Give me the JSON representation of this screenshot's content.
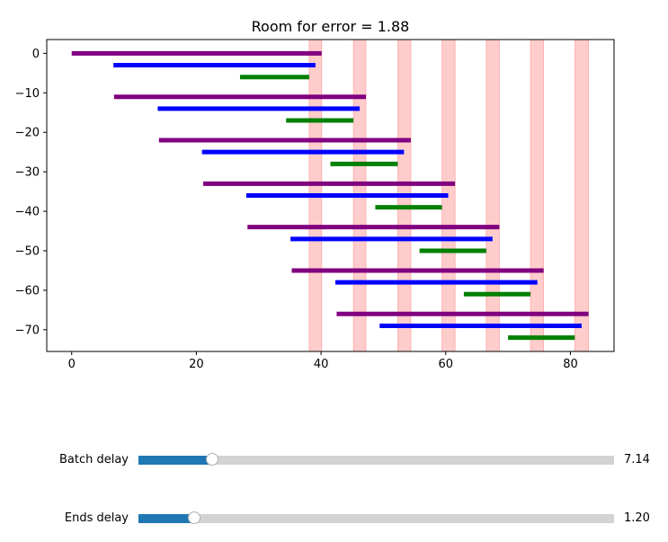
{
  "chart_data": {
    "type": "gantt",
    "title": "Room for error = 1.88",
    "xlabel": "",
    "ylabel": "",
    "xlim": [
      -4,
      87
    ],
    "ylim": [
      -75.5,
      3.5
    ],
    "xticks": [
      0,
      20,
      40,
      60,
      80
    ],
    "yticks": [
      0,
      -10,
      -20,
      -30,
      -40,
      -50,
      -60,
      -70
    ],
    "grid": false,
    "colors": {
      "purple": "#800080",
      "blue": "#0000ff",
      "green": "#008000",
      "band": "#ffcccc"
    },
    "bars": [
      {
        "y": 0,
        "start": 0.0,
        "end": 40.1,
        "color": "purple"
      },
      {
        "y": -3,
        "start": 6.7,
        "end": 39.1,
        "color": "blue"
      },
      {
        "y": -6,
        "start": 27.0,
        "end": 38.1,
        "color": "green"
      },
      {
        "y": -11,
        "start": 6.8,
        "end": 47.2,
        "color": "purple"
      },
      {
        "y": -14,
        "start": 13.8,
        "end": 46.2,
        "color": "blue"
      },
      {
        "y": -17,
        "start": 34.4,
        "end": 45.2,
        "color": "green"
      },
      {
        "y": -22,
        "start": 14.0,
        "end": 54.4,
        "color": "purple"
      },
      {
        "y": -25,
        "start": 20.9,
        "end": 53.3,
        "color": "blue"
      },
      {
        "y": -28,
        "start": 41.5,
        "end": 52.3,
        "color": "green"
      },
      {
        "y": -33,
        "start": 21.1,
        "end": 61.5,
        "color": "purple"
      },
      {
        "y": -36,
        "start": 28.0,
        "end": 60.4,
        "color": "blue"
      },
      {
        "y": -39,
        "start": 48.7,
        "end": 59.4,
        "color": "green"
      },
      {
        "y": -44,
        "start": 28.2,
        "end": 68.6,
        "color": "purple"
      },
      {
        "y": -47,
        "start": 35.1,
        "end": 67.5,
        "color": "blue"
      },
      {
        "y": -50,
        "start": 55.8,
        "end": 66.5,
        "color": "green"
      },
      {
        "y": -55,
        "start": 35.3,
        "end": 75.7,
        "color": "purple"
      },
      {
        "y": -58,
        "start": 42.3,
        "end": 74.7,
        "color": "blue"
      },
      {
        "y": -61,
        "start": 62.9,
        "end": 73.6,
        "color": "green"
      },
      {
        "y": -66,
        "start": 42.5,
        "end": 82.9,
        "color": "purple"
      },
      {
        "y": -69,
        "start": 49.4,
        "end": 81.8,
        "color": "blue"
      },
      {
        "y": -72,
        "start": 70.0,
        "end": 80.7,
        "color": "green"
      }
    ],
    "bands": [
      {
        "start": 38.1,
        "end": 40.1
      },
      {
        "start": 45.2,
        "end": 47.2
      },
      {
        "start": 52.3,
        "end": 54.4
      },
      {
        "start": 59.4,
        "end": 61.5
      },
      {
        "start": 66.5,
        "end": 68.6
      },
      {
        "start": 73.6,
        "end": 75.7
      },
      {
        "start": 80.7,
        "end": 82.9
      }
    ]
  },
  "sliders": [
    {
      "label": "Batch delay",
      "value": "7.14",
      "fraction": 0.157
    },
    {
      "label": "Ends delay",
      "value": "1.20",
      "fraction": 0.119
    }
  ]
}
